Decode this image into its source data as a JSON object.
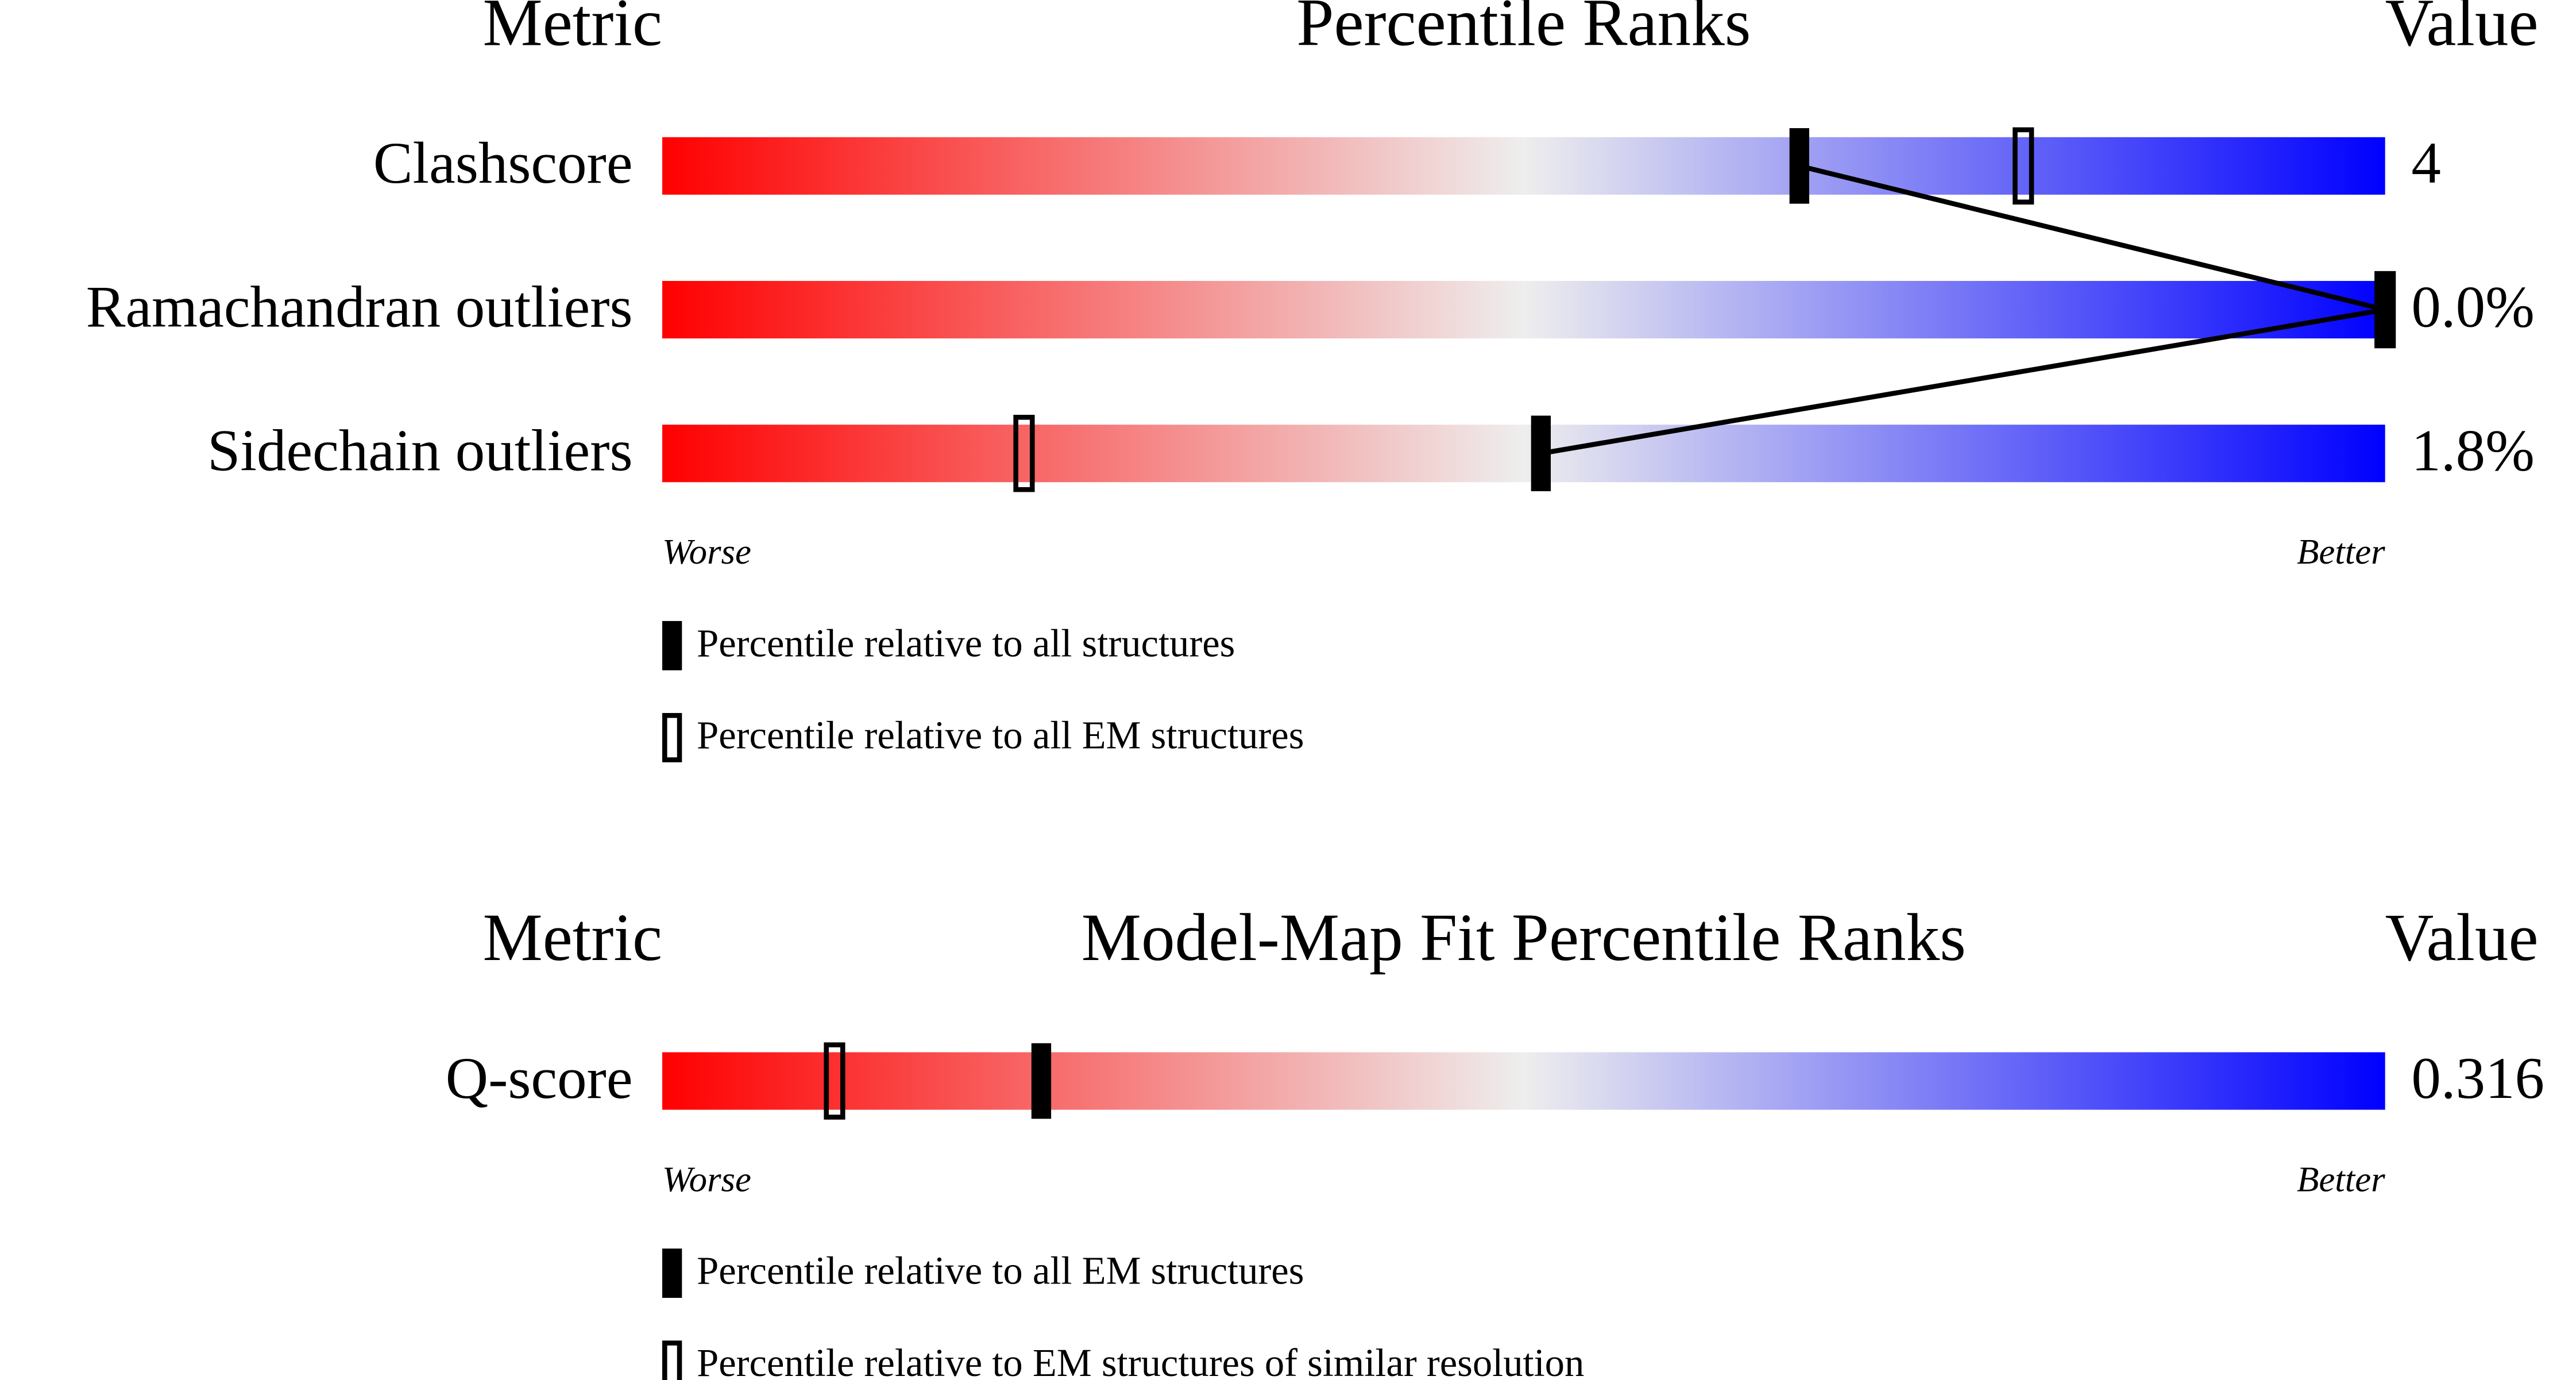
{
  "chart_data": [
    {
      "type": "percentile",
      "title": "Percentile Ranks",
      "metric_header": "Metric",
      "value_header": "Value",
      "categories": [
        "Clashscore",
        "Ramachandran outliers",
        "Sidechain outliers"
      ],
      "value_texts": [
        "4",
        "0.0%",
        "1.8%"
      ],
      "xlim": [
        0,
        100
      ],
      "worse": "Worse",
      "better": "Better",
      "colors": [
        "#ff0000",
        "#eeeeee",
        "#0000ff"
      ],
      "series": [
        {
          "name": "Percentile relative to all EM structures",
          "style": "open",
          "values": [
            79,
            100,
            21
          ]
        },
        {
          "name": "Percentile relative to all structures",
          "style": "filled",
          "values": [
            66,
            100,
            51
          ]
        }
      ],
      "legend_order": [
        1,
        0
      ]
    },
    {
      "type": "percentile",
      "title": "Model-Map Fit Percentile Ranks",
      "metric_header": "Metric",
      "value_header": "Value",
      "categories": [
        "Q-score"
      ],
      "value_texts": [
        "0.316"
      ],
      "xlim": [
        0,
        100
      ],
      "worse": "Worse",
      "better": "Better",
      "colors": [
        "#ff0000",
        "#eeeeee",
        "#0000ff"
      ],
      "series": [
        {
          "name": "Percentile relative to EM structures of similar resolution",
          "style": "open",
          "values": [
            10
          ]
        },
        {
          "name": "Percentile relative to all EM structures",
          "style": "filled",
          "values": [
            22
          ]
        }
      ],
      "legend_order": [
        1,
        0
      ]
    }
  ]
}
